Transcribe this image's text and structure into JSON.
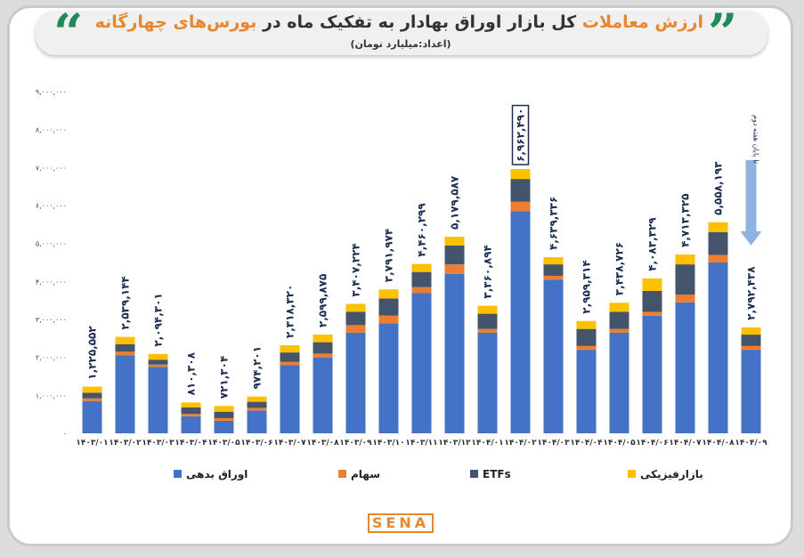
{
  "title_parts": [
    "ارزش معاملات",
    "کل بازار اوراق بهادار به تفکیک ماه در",
    "بورس‌های چهارگانه"
  ],
  "subtitle": "(اعداد:میلیارد تومان)",
  "logo": "SENA",
  "chart_data": {
    "type": "stacked_bar",
    "categories": [
      "۱۴۰۳/۰۱",
      "۱۴۰۳/۰۲",
      "۱۴۰۳/۰۳",
      "۱۴۰۳/۰۴",
      "۱۴۰۳/۰۵",
      "۱۴۰۳/۰۶",
      "۱۴۰۳/۰۷",
      "۱۴۰۳/۰۸",
      "۱۴۰۳/۰۹",
      "۱۴۰۳/۱۰",
      "۱۴۰۳/۱۱",
      "۱۴۰۳/۱۲",
      "۱۴۰۴/۰۱",
      "۱۴۰۴/۰۲",
      "۱۴۰۴/۰۳",
      "۱۴۰۴/۰۴",
      "۱۴۰۴/۰۵",
      "۱۴۰۴/۰۶",
      "۱۴۰۴/۰۷",
      "۱۴۰۴/۰۸",
      "۱۴۰۴/۰۹"
    ],
    "series": [
      {
        "name": "اوراق بدهی",
        "color": "#4472c4",
        "values": [
          850000,
          2050000,
          1750000,
          450000,
          330000,
          600000,
          1800000,
          2000000,
          2650000,
          2900000,
          3700000,
          4200000,
          2650000,
          5850000,
          4050000,
          2200000,
          2650000,
          3100000,
          3450000,
          4500000,
          2200000
        ]
      },
      {
        "name": "سهام",
        "color": "#ed7d31",
        "values": [
          70000,
          100000,
          60000,
          60000,
          70000,
          70000,
          80000,
          100000,
          200000,
          200000,
          150000,
          250000,
          100000,
          250000,
          100000,
          100000,
          100000,
          100000,
          200000,
          200000,
          100000
        ]
      },
      {
        "name": "ETFs",
        "color": "#44546a",
        "values": [
          150000,
          200000,
          130000,
          170000,
          170000,
          160000,
          250000,
          300000,
          350000,
          450000,
          400000,
          500000,
          400000,
          600000,
          300000,
          450000,
          450000,
          550000,
          800000,
          600000,
          300000
        ]
      },
      {
        "name": "بازارفیزیکی",
        "color": "#ffc000",
        "values": [
          160000,
          190000,
          150000,
          130000,
          150000,
          140000,
          190000,
          200000,
          210000,
          240000,
          210000,
          230000,
          210000,
          260000,
          190000,
          210000,
          240000,
          330000,
          260000,
          260000,
          190000
        ]
      }
    ],
    "totals": [
      1225552,
      2539144,
      2094301,
      810308,
      721304,
      974201,
      2318320,
      2599875,
      3407224,
      3791974,
      4460299,
      5179587,
      3360894,
      6962490,
      4639336,
      2959314,
      3438726,
      4083329,
      4713325,
      5558193,
      2792438
    ],
    "total_labels": [
      "۱,۲۲۵,۵۵۲",
      "۲,۵۳۹,۱۴۴",
      "۲,۰۹۴,۳۰۱",
      "۸۱۰,۳۰۸",
      "۷۲۱,۳۰۴",
      "۹۷۴,۲۰۱",
      "۲,۳۱۸,۳۲۰",
      "۲,۵۹۹,۸۷۵",
      "۳,۴۰۷,۲۲۴",
      "۳,۷۹۱,۹۷۴",
      "۴,۴۶۰,۲۹۹",
      "۵,۱۷۹,۵۸۷",
      "۳,۳۶۰,۸۹۴",
      "۶,۹۶۲,۴۹۰",
      "۴,۶۳۹,۳۳۶",
      "۲,۹۵۹,۳۱۴",
      "۳,۴۳۸,۷۲۶",
      "۴,۰۸۳,۳۲۹",
      "۴,۷۱۳,۳۲۵",
      "۵,۵۵۸,۱۹۳",
      "۲,۷۹۲,۴۳۸"
    ],
    "boxed_total": "۱۴۰۴/۰۲",
    "annotation": "تا پایان هفته دوم",
    "annotation_category": "۱۴۰۴/۰۹",
    "ylim": [
      0,
      9000000
    ],
    "yticks": [
      {
        "value": 0,
        "label": "۰"
      },
      {
        "value": 1000000,
        "label": "۱,۰۰۰,۰۰۰"
      },
      {
        "value": 2000000,
        "label": "۲,۰۰۰,۰۰۰"
      },
      {
        "value": 3000000,
        "label": "۳,۰۰۰,۰۰۰"
      },
      {
        "value": 4000000,
        "label": "۴,۰۰۰,۰۰۰"
      },
      {
        "value": 5000000,
        "label": "۵,۰۰۰,۰۰۰"
      },
      {
        "value": 6000000,
        "label": "۶,۰۰۰,۰۰۰"
      },
      {
        "value": 7000000,
        "label": "۷,۰۰۰,۰۰۰"
      },
      {
        "value": 8000000,
        "label": "۸,۰۰۰,۰۰۰"
      },
      {
        "value": 9000000,
        "label": "۹,۰۰۰,۰۰۰"
      }
    ],
    "grid": false
  }
}
